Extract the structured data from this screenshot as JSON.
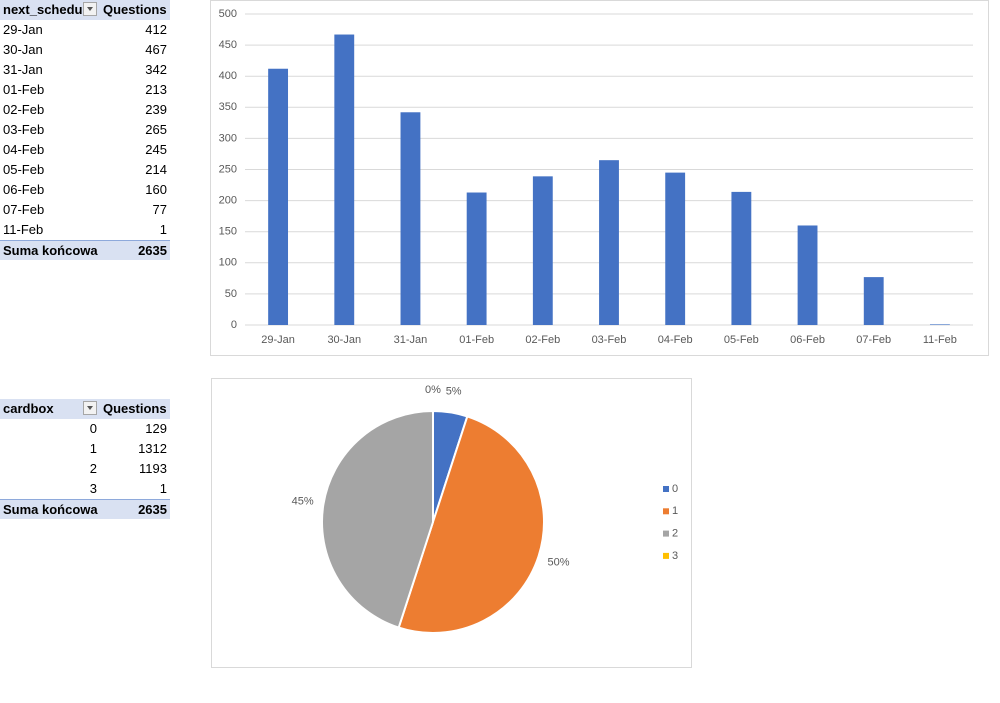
{
  "tables": [
    {
      "headers": [
        "next_schedu",
        "Questions"
      ],
      "rows": [
        [
          "29-Jan",
          412
        ],
        [
          "30-Jan",
          467
        ],
        [
          "31-Jan",
          342
        ],
        [
          "01-Feb",
          213
        ],
        [
          "02-Feb",
          239
        ],
        [
          "03-Feb",
          265
        ],
        [
          "04-Feb",
          245
        ],
        [
          "05-Feb",
          214
        ],
        [
          "06-Feb",
          160
        ],
        [
          "07-Feb",
          77
        ],
        [
          "11-Feb",
          1
        ]
      ],
      "total": [
        "Suma końcowa",
        2635
      ]
    },
    {
      "headers": [
        "cardbox",
        "Questions"
      ],
      "rows": [
        [
          0,
          129
        ],
        [
          1,
          1312
        ],
        [
          2,
          1193
        ],
        [
          3,
          1
        ]
      ],
      "total": [
        "Suma końcowa",
        2635
      ]
    }
  ],
  "chart_data": [
    {
      "type": "bar",
      "categories": [
        "29-Jan",
        "30-Jan",
        "31-Jan",
        "01-Feb",
        "02-Feb",
        "03-Feb",
        "04-Feb",
        "05-Feb",
        "06-Feb",
        "07-Feb",
        "11-Feb"
      ],
      "values": [
        412,
        467,
        342,
        213,
        239,
        265,
        245,
        214,
        160,
        77,
        1
      ],
      "color": "#4472c4",
      "ylim": [
        0,
        500
      ],
      "yticks": [
        0,
        50,
        100,
        150,
        200,
        250,
        300,
        350,
        400,
        450,
        500
      ],
      "grid": true
    },
    {
      "type": "pie",
      "categories": [
        "0",
        "1",
        "2",
        "3"
      ],
      "values": [
        5,
        50,
        45,
        0
      ],
      "value_labels": [
        "5%",
        "50%",
        "45%",
        "0%"
      ],
      "colors": [
        "#4472c4",
        "#ed7d31",
        "#a5a5a5",
        "#ffc000"
      ],
      "legend": "right"
    }
  ]
}
